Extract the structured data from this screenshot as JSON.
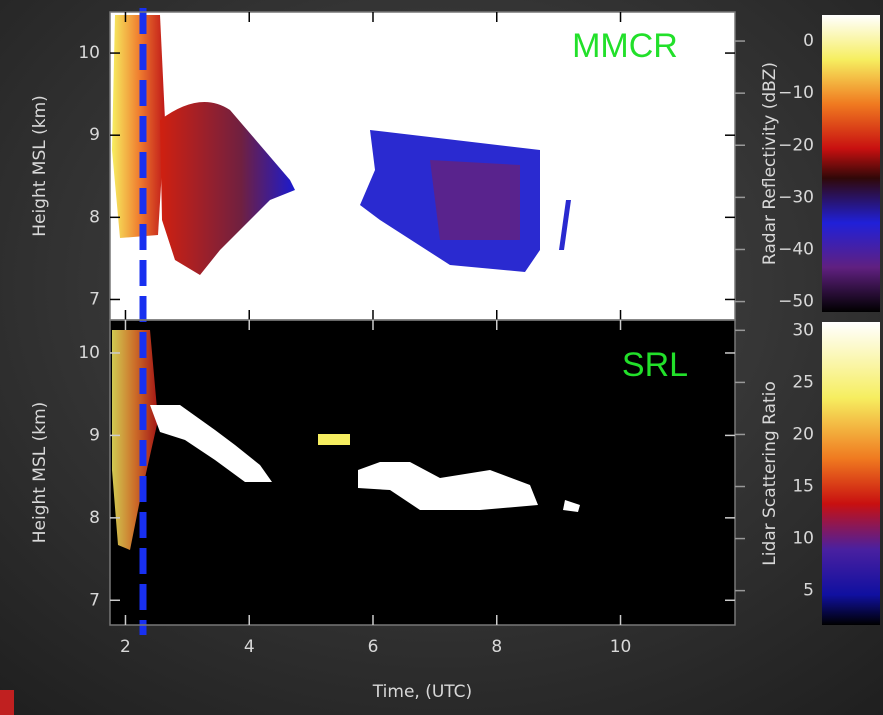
{
  "chart_data": [
    {
      "type": "heatmap",
      "annotation": "MMCR",
      "ylabel": "Height MSL (km)",
      "xlim": [
        1.75,
        11.85
      ],
      "ylim": [
        6.75,
        10.5
      ],
      "yticks": [
        7,
        8,
        9,
        10
      ],
      "colorbar": {
        "label": "Radar Reflectivity (dBZ)",
        "lim": [
          -52,
          5
        ],
        "ticks": [
          0,
          {
            "value": -10,
            "label": "−10"
          },
          {
            "value": -20,
            "label": "−20"
          },
          {
            "value": -30,
            "label": "−30"
          },
          {
            "value": -40,
            "label": "−40"
          },
          {
            "value": -50,
            "label": "−50"
          }
        ]
      }
    },
    {
      "type": "heatmap",
      "annotation": "SRL",
      "ylabel": "Height MSL (km)",
      "xlabel": "Time, (UTC)",
      "xlim": [
        1.75,
        11.85
      ],
      "xticks": [
        2,
        4,
        6,
        8,
        10
      ],
      "ylim": [
        6.7,
        10.4
      ],
      "yticks": [
        7,
        8,
        9,
        10
      ],
      "colorbar": {
        "label": "Lidar Scattering Ratio",
        "lim": [
          1.7,
          30.8
        ],
        "ticks": [
          5,
          10,
          15,
          20,
          25,
          30
        ]
      }
    }
  ]
}
